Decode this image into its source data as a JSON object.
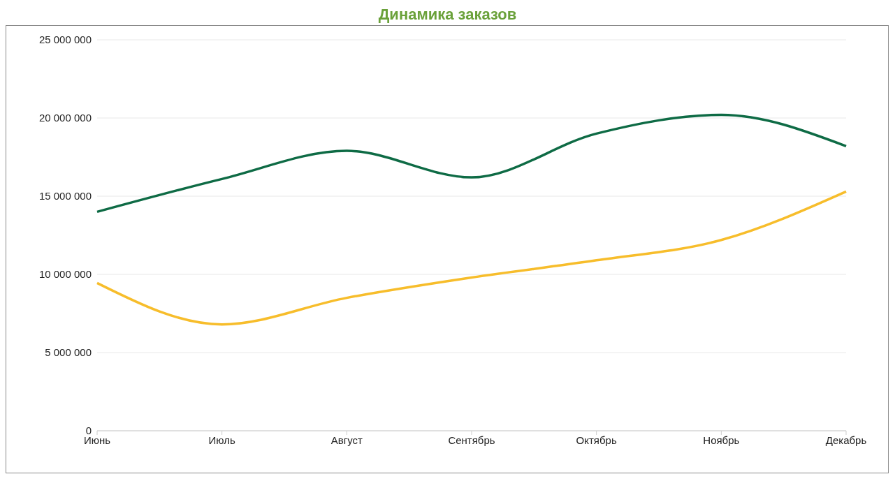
{
  "chart_data": {
    "type": "line",
    "title": "Динамика заказов",
    "categories": [
      "Июнь",
      "Июль",
      "Август",
      "Сентябрь",
      "Октябрь",
      "Ноябрь",
      "Декабрь"
    ],
    "series": [
      {
        "color": "#0e6b45",
        "values": [
          14000000,
          16100000,
          17900000,
          16200000,
          19000000,
          20200000,
          18200000
        ]
      },
      {
        "color": "#f7bd2b",
        "values": [
          9450000,
          6800000,
          8500000,
          9800000,
          10900000,
          12200000,
          15300000
        ]
      }
    ],
    "ylim": [
      0,
      25000000
    ],
    "yticks": [
      0,
      5000000,
      10000000,
      15000000,
      20000000,
      25000000
    ],
    "grid": "y",
    "marker": "none",
    "line_style": "solid"
  }
}
